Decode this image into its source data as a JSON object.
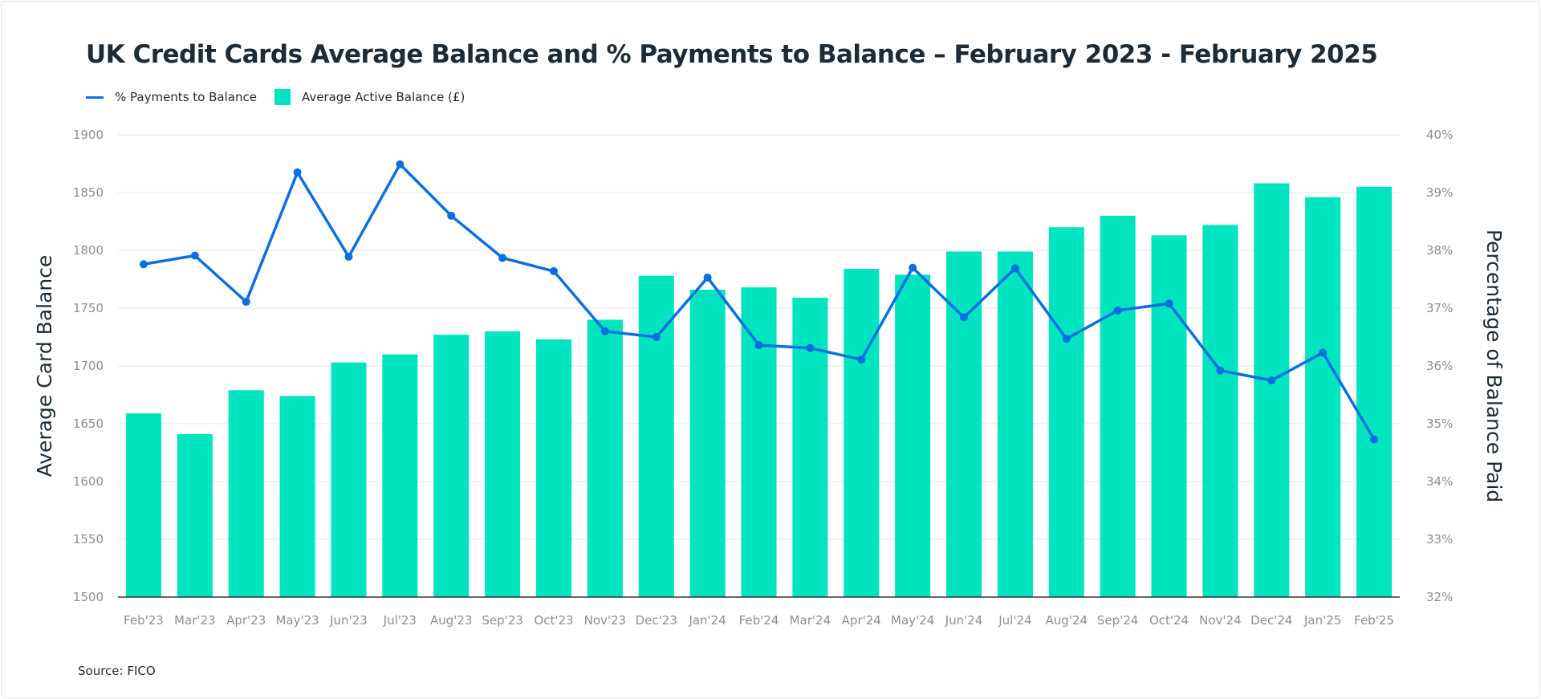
{
  "chart_data": {
    "type": "bar+line",
    "title": "UK Credit Cards Average Balance and % Payments to Balance – February 2023 - February 2025",
    "source": "Source: FICO",
    "categories": [
      "Feb'23",
      "Mar'23",
      "Apr'23",
      "May'23",
      "Jun'23",
      "Jul'23",
      "Aug'23",
      "Sep'23",
      "Oct'23",
      "Nov'23",
      "Dec'23",
      "Jan'24",
      "Feb'24",
      "Mar'24",
      "Apr'24",
      "May'24",
      "Jun'24",
      "Jul'24",
      "Aug'24",
      "Sep'24",
      "Oct'24",
      "Nov'24",
      "Dec'24",
      "Jan'25",
      "Feb'25"
    ],
    "ylabel": "Average Card Balance",
    "y2label": "Percentage of Balance Paid",
    "ylim": [
      1500,
      1900
    ],
    "y2lim": [
      32,
      40
    ],
    "yticks": [
      "1500",
      "1550",
      "1600",
      "1650",
      "1700",
      "1750",
      "1800",
      "1850",
      "1900"
    ],
    "y2ticks": [
      "32%",
      "33%",
      "34%",
      "35%",
      "36%",
      "37%",
      "38%",
      "39%",
      "40%"
    ],
    "grid": true,
    "legend_placement": "top-left",
    "series": [
      {
        "name": "Average Active Balance (£)",
        "type": "bar",
        "axis": "left",
        "color": "#00e5c0",
        "values": [
          1659,
          1641,
          1679,
          1674,
          1703,
          1710,
          1727,
          1730,
          1723,
          1740,
          1778,
          1766,
          1768,
          1759,
          1784,
          1779,
          1799,
          1799,
          1820,
          1830,
          1813,
          1822,
          1858,
          1846,
          1855
        ]
      },
      {
        "name": "% Payments to Balance",
        "type": "line",
        "axis": "right",
        "color": "#0b6fe2",
        "values": [
          37.76,
          37.91,
          37.11,
          39.35,
          37.89,
          39.49,
          38.6,
          37.87,
          37.64,
          36.6,
          36.5,
          37.53,
          36.36,
          36.31,
          36.11,
          37.7,
          36.84,
          37.69,
          36.47,
          36.96,
          37.08,
          35.92,
          35.75,
          36.23,
          34.73
        ]
      }
    ]
  }
}
